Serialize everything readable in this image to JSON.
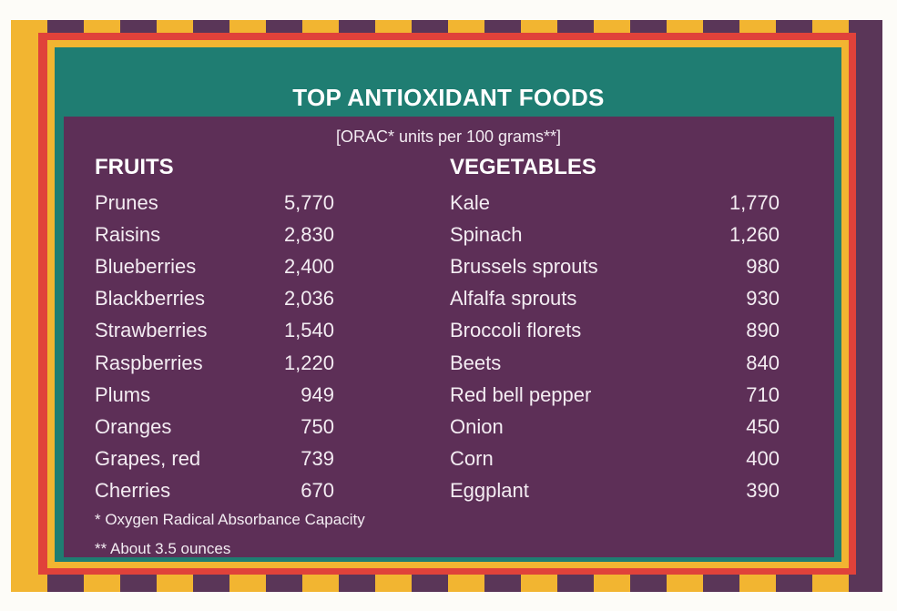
{
  "title": "TOP ANTIOXIDANT FOODS",
  "subtitle": "[ORAC* units per 100 grams**]",
  "fruits": {
    "heading": "FRUITS",
    "items": [
      {
        "name": "Prunes",
        "value": "5,770"
      },
      {
        "name": "Raisins",
        "value": "2,830"
      },
      {
        "name": "Blueberries",
        "value": "2,400"
      },
      {
        "name": "Blackberries",
        "value": "2,036"
      },
      {
        "name": "Strawberries",
        "value": "1,540"
      },
      {
        "name": "Raspberries",
        "value": "1,220"
      },
      {
        "name": "Plums",
        "value": "949"
      },
      {
        "name": "Oranges",
        "value": "750"
      },
      {
        "name": "Grapes, red",
        "value": "739"
      },
      {
        "name": "Cherries",
        "value": "670"
      }
    ]
  },
  "vegetables": {
    "heading": "VEGETABLES",
    "items": [
      {
        "name": "Kale",
        "value": "1,770"
      },
      {
        "name": "Spinach",
        "value": "1,260"
      },
      {
        "name": "Brussels sprouts",
        "value": "980"
      },
      {
        "name": "Alfalfa sprouts",
        "value": "930"
      },
      {
        "name": "Broccoli florets",
        "value": "890"
      },
      {
        "name": "Beets",
        "value": "840"
      },
      {
        "name": "Red bell pepper",
        "value": "710"
      },
      {
        "name": "Onion",
        "value": "450"
      },
      {
        "name": "Corn",
        "value": "400"
      },
      {
        "name": "Eggplant",
        "value": "390"
      }
    ]
  },
  "footnotes": {
    "note1": "*  Oxygen Radical Absorbance Capacity",
    "note2": "** About 3.5 ounces"
  },
  "colors": {
    "panel": "#5d2f57",
    "teal": "#1f7d72",
    "red": "#e0423a",
    "yellow": "#f2b531",
    "text": "#ffffff"
  }
}
